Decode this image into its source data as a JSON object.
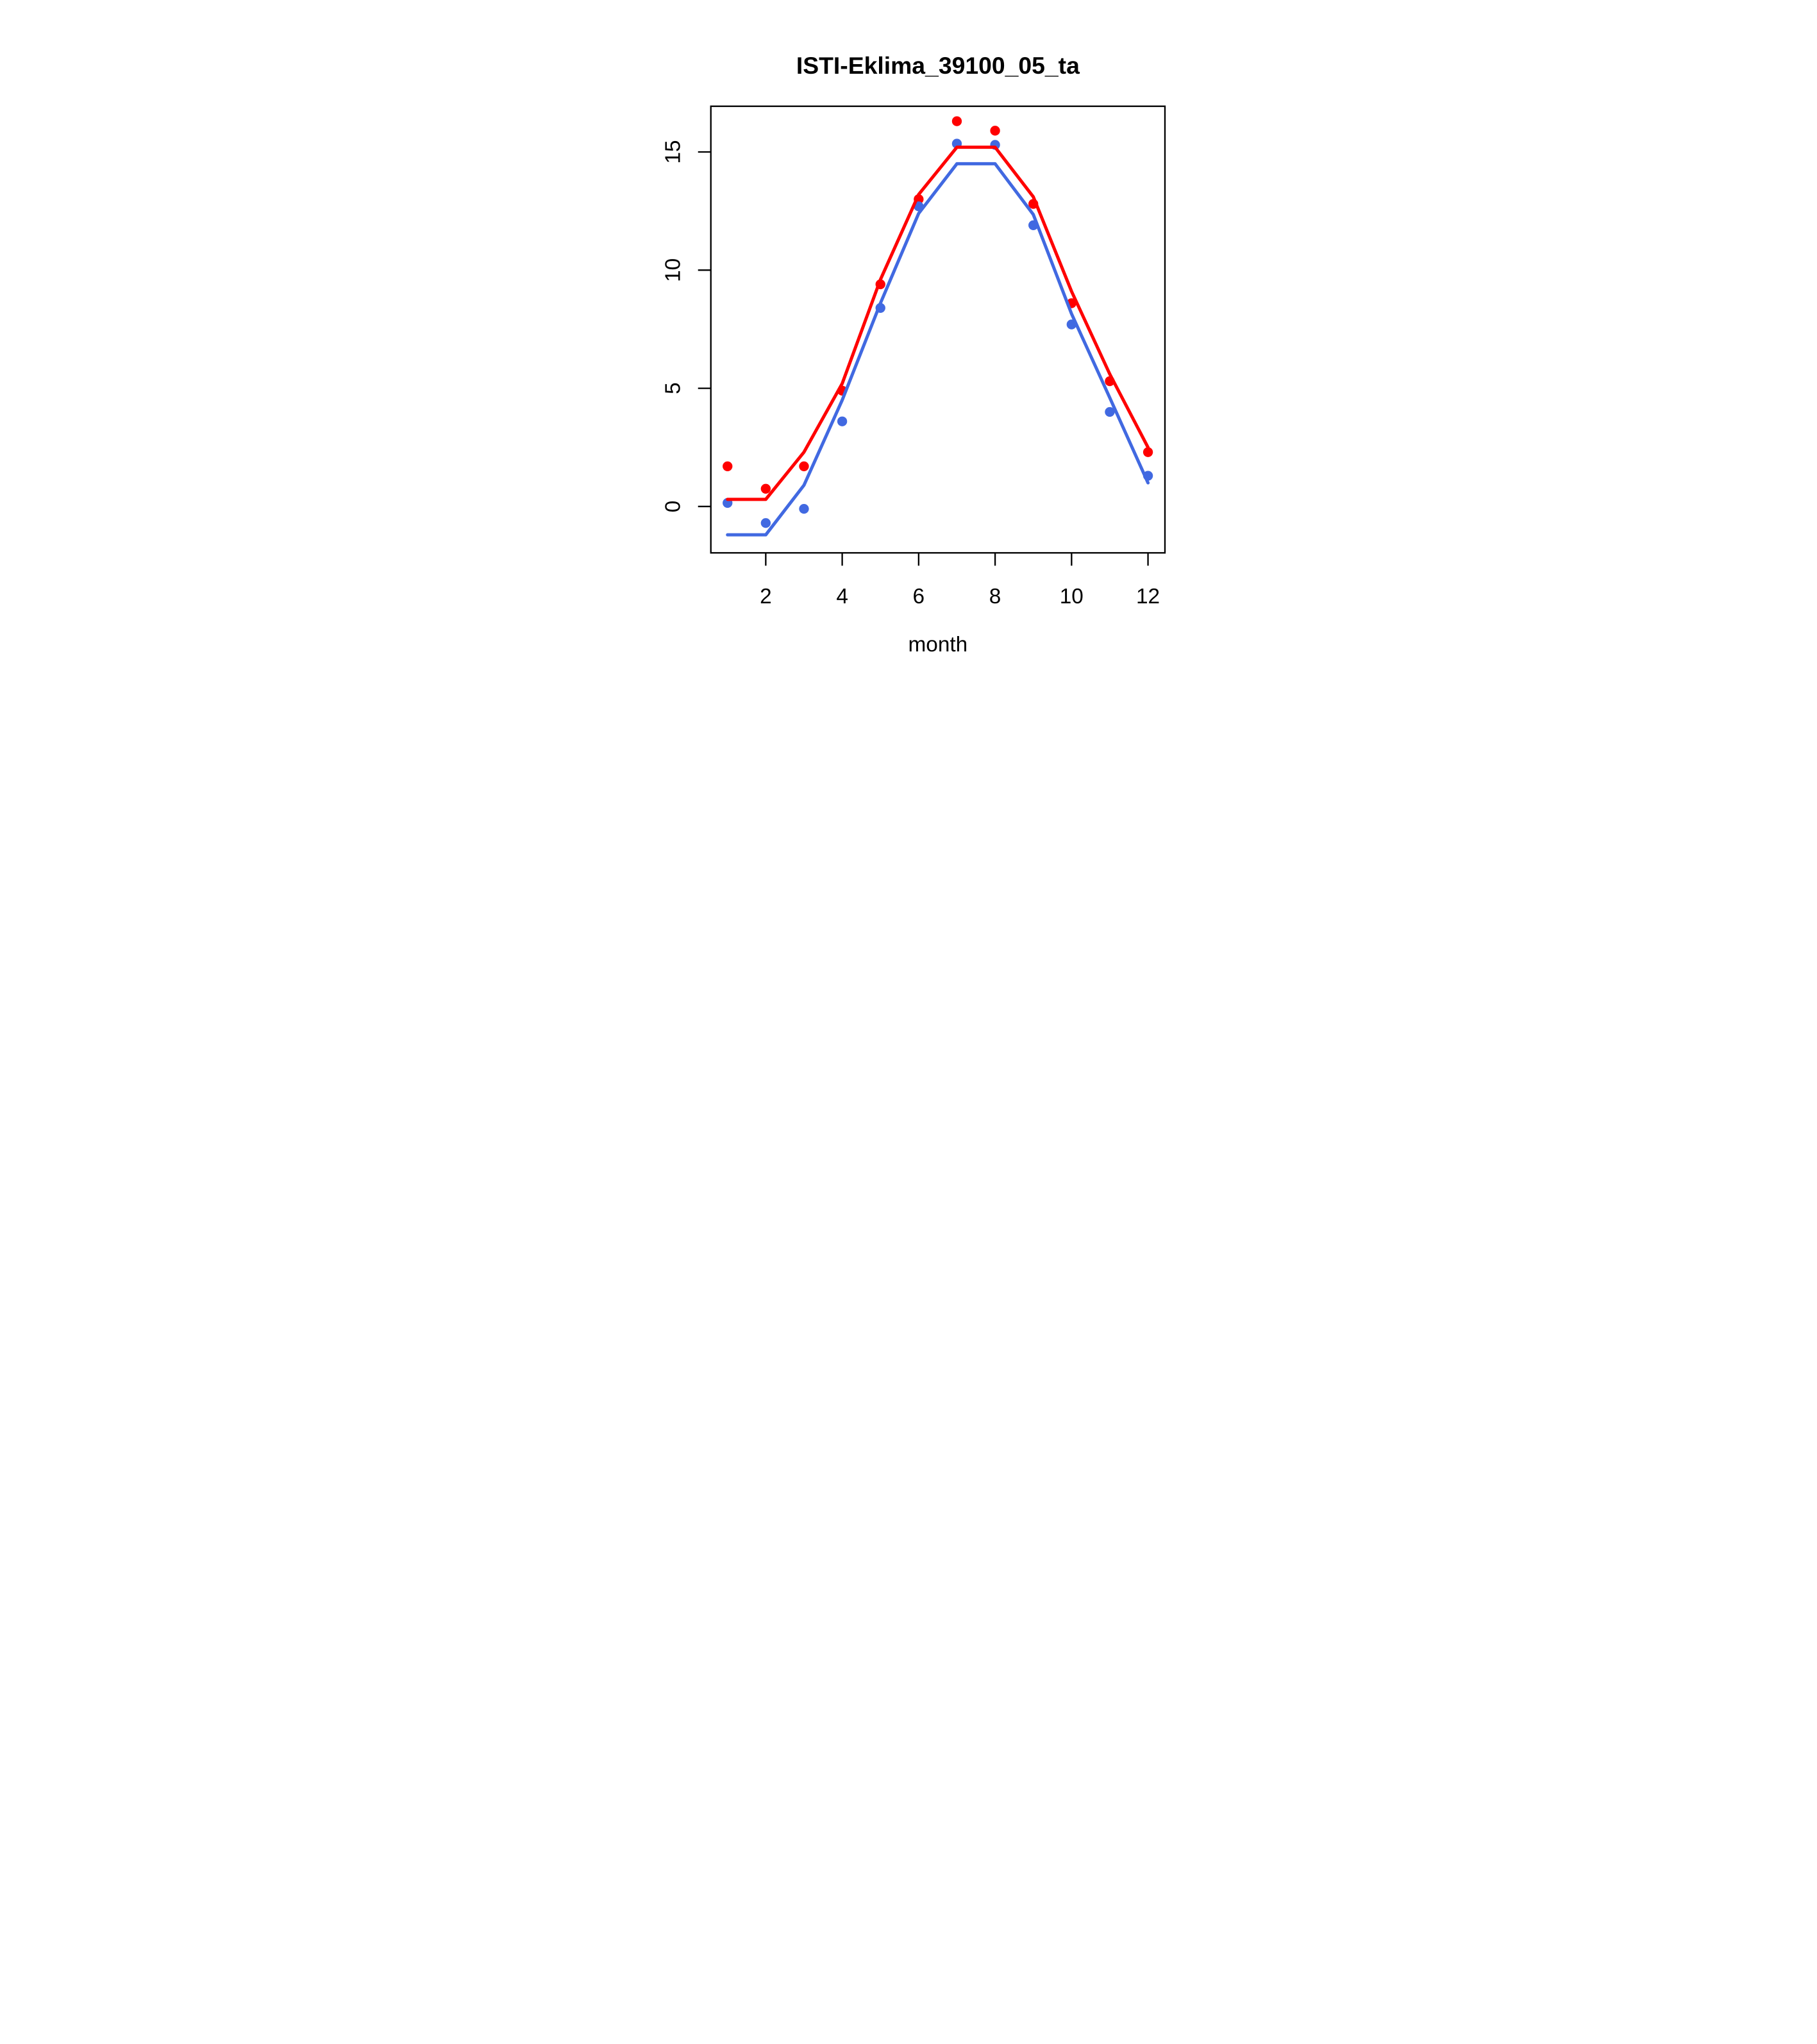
{
  "page": {
    "background": "#FFFFFF"
  },
  "chart_data": {
    "type": "line",
    "title": "ISTI-Eklima_39100_05_ta",
    "xlabel": "month",
    "ylabel": "",
    "x": [
      1,
      2,
      3,
      4,
      5,
      6,
      7,
      8,
      9,
      10,
      11,
      12
    ],
    "xticks": [
      2,
      4,
      6,
      8,
      10,
      12
    ],
    "yticks": [
      0,
      5,
      10,
      15
    ],
    "xlim": [
      0.56,
      12.44
    ],
    "ylim": [
      -1.96,
      16.94
    ],
    "grid": false,
    "legend_position": "none",
    "colors": {
      "red": "#FF0000",
      "blue": "#4169E1",
      "axis": "#000000"
    },
    "series": [
      {
        "name": "red-points",
        "kind": "scatter",
        "color_key": "red",
        "values": [
          1.7,
          0.75,
          1.7,
          4.9,
          9.4,
          13.0,
          16.3,
          15.9,
          12.8,
          8.6,
          5.3,
          2.3
        ]
      },
      {
        "name": "blue-points",
        "kind": "scatter",
        "color_key": "blue",
        "values": [
          0.15,
          -0.7,
          -0.1,
          3.6,
          8.4,
          12.7,
          15.35,
          15.3,
          11.9,
          7.7,
          4.0,
          1.3
        ]
      },
      {
        "name": "red-line",
        "kind": "line",
        "color_key": "red",
        "values": [
          0.3,
          0.3,
          2.3,
          5.2,
          9.6,
          13.2,
          15.2,
          15.2,
          13.1,
          9.1,
          5.6,
          2.5
        ]
      },
      {
        "name": "blue-line",
        "kind": "line",
        "color_key": "blue",
        "values": [
          -1.2,
          -1.2,
          0.9,
          4.5,
          8.6,
          12.4,
          14.5,
          14.5,
          12.35,
          8.15,
          4.6,
          1.0
        ]
      }
    ]
  }
}
